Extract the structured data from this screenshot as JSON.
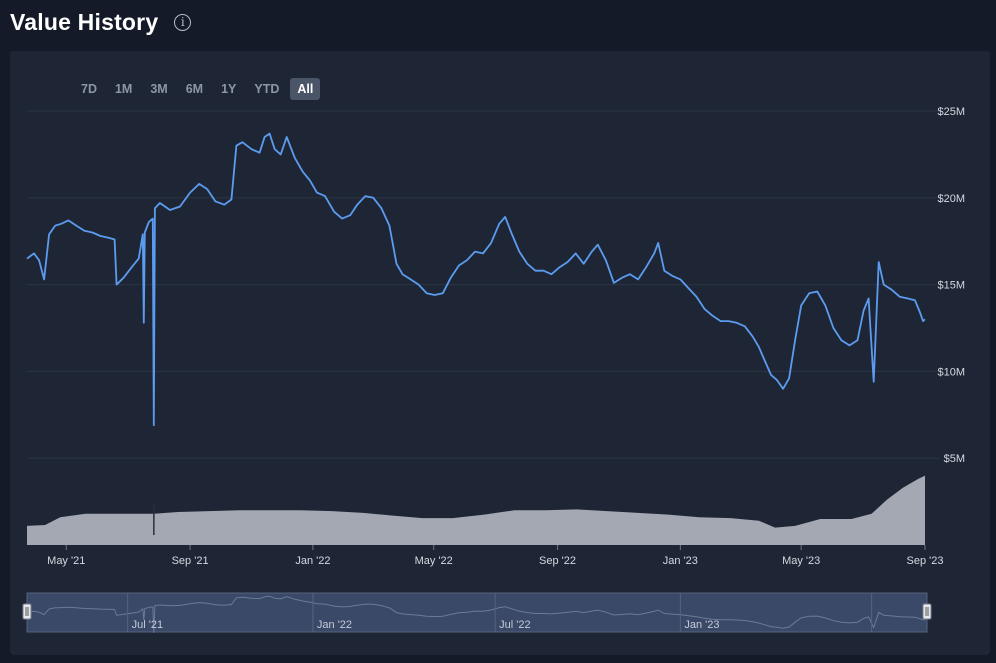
{
  "header": {
    "title": "Value History",
    "info_icon": "info-icon"
  },
  "range_selector": {
    "buttons": [
      "7D",
      "1M",
      "3M",
      "6M",
      "1Y",
      "YTD",
      "All"
    ],
    "selected": "All"
  },
  "colors": {
    "line": "#5b9cf0",
    "volume": "#a3a8b2",
    "navigator": "#3a4968",
    "grid": "#2b3445"
  },
  "chart_data": {
    "type": "line",
    "title": "Value History",
    "x_start": "2021-03-23",
    "x_end": "2023-09-01",
    "x_ticks": [
      "May '21",
      "Sep '21",
      "Jan '22",
      "May '22",
      "Sep '22",
      "Jan '23",
      "May '23",
      "Sep '23"
    ],
    "x_tick_dates": [
      "2021-05-01",
      "2021-09-01",
      "2022-01-01",
      "2022-05-01",
      "2022-09-01",
      "2023-01-01",
      "2023-05-01",
      "2023-09-01"
    ],
    "y_ticks": [
      "$25M",
      "$20M",
      "$15M",
      "$10M",
      "$5M"
    ],
    "y_tick_values": [
      25,
      20,
      15,
      10,
      5
    ],
    "ylim": [
      0,
      25
    ],
    "grid": true,
    "series": [
      {
        "points": [
          [
            "2021-03-23",
            16.5
          ],
          [
            "2021-03-30",
            16.8
          ],
          [
            "2021-04-04",
            16.4
          ],
          [
            "2021-04-09",
            15.3
          ],
          [
            "2021-04-14",
            17.9
          ],
          [
            "2021-04-20",
            18.4
          ],
          [
            "2021-04-26",
            18.5
          ],
          [
            "2021-05-03",
            18.7
          ],
          [
            "2021-05-11",
            18.4
          ],
          [
            "2021-05-19",
            18.1
          ],
          [
            "2021-05-27",
            18.0
          ],
          [
            "2021-06-04",
            17.8
          ],
          [
            "2021-06-12",
            17.7
          ],
          [
            "2021-06-18",
            17.6
          ],
          [
            "2021-06-20",
            15.0
          ],
          [
            "2021-06-27",
            15.4
          ],
          [
            "2021-07-05",
            16.0
          ],
          [
            "2021-07-12",
            16.5
          ],
          [
            "2021-07-16",
            17.9
          ],
          [
            "2021-07-17",
            12.8
          ],
          [
            "2021-07-18",
            18.0
          ],
          [
            "2021-07-22",
            18.6
          ],
          [
            "2021-07-26",
            18.8
          ],
          [
            "2021-07-27",
            6.9
          ],
          [
            "2021-07-28",
            19.4
          ],
          [
            "2021-08-02",
            19.7
          ],
          [
            "2021-08-12",
            19.3
          ],
          [
            "2021-08-22",
            19.5
          ],
          [
            "2021-09-01",
            20.3
          ],
          [
            "2021-09-10",
            20.8
          ],
          [
            "2021-09-18",
            20.5
          ],
          [
            "2021-09-26",
            19.8
          ],
          [
            "2021-10-05",
            19.6
          ],
          [
            "2021-10-12",
            19.9
          ],
          [
            "2021-10-17",
            23.0
          ],
          [
            "2021-10-23",
            23.2
          ],
          [
            "2021-11-01",
            22.8
          ],
          [
            "2021-11-09",
            22.6
          ],
          [
            "2021-11-14",
            23.5
          ],
          [
            "2021-11-19",
            23.7
          ],
          [
            "2021-11-24",
            22.8
          ],
          [
            "2021-11-30",
            22.5
          ],
          [
            "2021-12-06",
            23.5
          ],
          [
            "2021-12-14",
            22.3
          ],
          [
            "2021-12-22",
            21.5
          ],
          [
            "2021-12-29",
            21.0
          ],
          [
            "2022-01-05",
            20.3
          ],
          [
            "2022-01-13",
            20.1
          ],
          [
            "2022-01-22",
            19.2
          ],
          [
            "2022-01-30",
            18.8
          ],
          [
            "2022-02-07",
            19.0
          ],
          [
            "2022-02-14",
            19.6
          ],
          [
            "2022-02-22",
            20.1
          ],
          [
            "2022-03-02",
            20.0
          ],
          [
            "2022-03-10",
            19.4
          ],
          [
            "2022-03-18",
            18.4
          ],
          [
            "2022-03-25",
            16.2
          ],
          [
            "2022-03-31",
            15.6
          ],
          [
            "2022-04-08",
            15.3
          ],
          [
            "2022-04-16",
            15.0
          ],
          [
            "2022-04-24",
            14.5
          ],
          [
            "2022-05-02",
            14.4
          ],
          [
            "2022-05-10",
            14.5
          ],
          [
            "2022-05-18",
            15.4
          ],
          [
            "2022-05-26",
            16.1
          ],
          [
            "2022-06-03",
            16.4
          ],
          [
            "2022-06-11",
            16.9
          ],
          [
            "2022-06-19",
            16.8
          ],
          [
            "2022-06-27",
            17.4
          ],
          [
            "2022-07-05",
            18.5
          ],
          [
            "2022-07-11",
            18.9
          ],
          [
            "2022-07-17",
            18.0
          ],
          [
            "2022-07-25",
            16.9
          ],
          [
            "2022-08-02",
            16.2
          ],
          [
            "2022-08-10",
            15.8
          ],
          [
            "2022-08-18",
            15.8
          ],
          [
            "2022-08-26",
            15.6
          ],
          [
            "2022-09-03",
            16.0
          ],
          [
            "2022-09-11",
            16.3
          ],
          [
            "2022-09-19",
            16.8
          ],
          [
            "2022-09-27",
            16.2
          ],
          [
            "2022-10-05",
            16.9
          ],
          [
            "2022-10-11",
            17.3
          ],
          [
            "2022-10-19",
            16.4
          ],
          [
            "2022-10-27",
            15.1
          ],
          [
            "2022-11-04",
            15.4
          ],
          [
            "2022-11-12",
            15.6
          ],
          [
            "2022-11-20",
            15.3
          ],
          [
            "2022-11-28",
            16.0
          ],
          [
            "2022-12-06",
            16.8
          ],
          [
            "2022-12-10",
            17.4
          ],
          [
            "2022-12-16",
            15.8
          ],
          [
            "2022-12-24",
            15.5
          ],
          [
            "2023-01-01",
            15.3
          ],
          [
            "2023-01-09",
            14.8
          ],
          [
            "2023-01-17",
            14.3
          ],
          [
            "2023-01-25",
            13.6
          ],
          [
            "2023-02-02",
            13.2
          ],
          [
            "2023-02-10",
            12.9
          ],
          [
            "2023-02-18",
            12.9
          ],
          [
            "2023-02-26",
            12.8
          ],
          [
            "2023-03-06",
            12.6
          ],
          [
            "2023-03-14",
            12.0
          ],
          [
            "2023-03-20",
            11.4
          ],
          [
            "2023-03-26",
            10.6
          ],
          [
            "2023-04-01",
            9.8
          ],
          [
            "2023-04-07",
            9.5
          ],
          [
            "2023-04-13",
            9.0
          ],
          [
            "2023-04-19",
            9.6
          ],
          [
            "2023-04-25",
            11.8
          ],
          [
            "2023-05-01",
            13.8
          ],
          [
            "2023-05-09",
            14.5
          ],
          [
            "2023-05-17",
            14.6
          ],
          [
            "2023-05-25",
            13.8
          ],
          [
            "2023-06-02",
            12.5
          ],
          [
            "2023-06-10",
            11.8
          ],
          [
            "2023-06-18",
            11.5
          ],
          [
            "2023-06-26",
            11.8
          ],
          [
            "2023-07-02",
            13.5
          ],
          [
            "2023-07-07",
            14.2
          ],
          [
            "2023-07-12",
            9.4
          ],
          [
            "2023-07-17",
            16.3
          ],
          [
            "2023-07-22",
            15.0
          ],
          [
            "2023-07-30",
            14.7
          ],
          [
            "2023-08-07",
            14.3
          ],
          [
            "2023-08-15",
            14.2
          ],
          [
            "2023-08-22",
            14.1
          ],
          [
            "2023-08-27",
            13.4
          ],
          [
            "2023-08-30",
            12.9
          ],
          [
            "2023-09-01",
            13.0
          ]
        ]
      }
    ],
    "volume": [
      [
        "2021-03-23",
        1.1
      ],
      [
        "2021-04-10",
        1.15
      ],
      [
        "2021-04-25",
        1.6
      ],
      [
        "2021-05-20",
        1.8
      ],
      [
        "2021-06-20",
        1.8
      ],
      [
        "2021-07-27",
        1.8
      ],
      [
        "2021-08-20",
        1.9
      ],
      [
        "2021-09-20",
        1.95
      ],
      [
        "2021-10-20",
        2.0
      ],
      [
        "2021-11-20",
        2.0
      ],
      [
        "2021-12-20",
        2.0
      ],
      [
        "2022-01-20",
        1.95
      ],
      [
        "2022-02-20",
        1.85
      ],
      [
        "2022-03-20",
        1.7
      ],
      [
        "2022-04-20",
        1.55
      ],
      [
        "2022-05-20",
        1.55
      ],
      [
        "2022-06-20",
        1.75
      ],
      [
        "2022-07-20",
        2.0
      ],
      [
        "2022-08-20",
        2.0
      ],
      [
        "2022-09-20",
        2.05
      ],
      [
        "2022-10-20",
        1.95
      ],
      [
        "2022-11-20",
        1.85
      ],
      [
        "2022-12-20",
        1.75
      ],
      [
        "2023-01-20",
        1.6
      ],
      [
        "2023-02-20",
        1.55
      ],
      [
        "2023-03-20",
        1.4
      ],
      [
        "2023-04-05",
        1.0
      ],
      [
        "2023-04-25",
        1.1
      ],
      [
        "2023-05-20",
        1.5
      ],
      [
        "2023-06-20",
        1.5
      ],
      [
        "2023-07-10",
        1.8
      ],
      [
        "2023-07-25",
        2.6
      ],
      [
        "2023-08-10",
        3.3
      ],
      [
        "2023-08-25",
        3.8
      ],
      [
        "2023-09-01",
        4.0
      ]
    ],
    "navigator": {
      "labels": [
        "Jul '21",
        "Jan '22",
        "Jul '22",
        "Jan '23"
      ],
      "label_dates": [
        "2021-07-01",
        "2022-01-01",
        "2022-07-01",
        "2023-01-01"
      ]
    }
  }
}
